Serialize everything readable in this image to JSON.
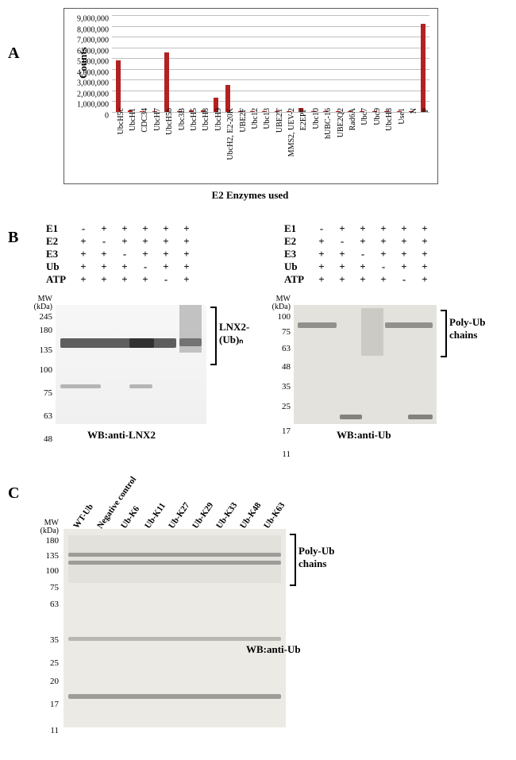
{
  "panelA": {
    "label": "A",
    "chart": {
      "type": "bar",
      "x_axis_label": "E2 Enzymes used",
      "y_axis_label": "Counts",
      "ylim": [
        0,
        9000000
      ],
      "ytick_step": 1000000,
      "bar_color": "#b22222",
      "grid_color": "#bfbfbf",
      "background_color": "#ffffff",
      "border_color": "#5a5a5a",
      "tick_fontsize": 10,
      "label_fontsize": 13,
      "categories": [
        "UbcH5c",
        "UbcH1",
        "CDC34",
        "UbcH7",
        "UbcH5b",
        "Ubc3B",
        "UbcH5",
        "UbcH8",
        "UbcH9",
        "UbcH2, E2-20K",
        "UBE2F",
        "Ubc12",
        "Ubc13",
        "UBE2T",
        "MMS2, UEV-2",
        "E2EPF",
        "Ubc10",
        "hUBC-16",
        "UBE2Q2",
        "Rad6A",
        "Ubc7",
        "Ubc9",
        "UbcH8",
        "Use1",
        "N",
        "P"
      ],
      "values": [
        4800000,
        150000,
        80000,
        80000,
        5500000,
        100000,
        150000,
        150000,
        1300000,
        2500000,
        80000,
        80000,
        80000,
        80000,
        100000,
        350000,
        80000,
        80000,
        80000,
        80000,
        100000,
        80000,
        80000,
        80000,
        80000,
        8200000
      ]
    }
  },
  "panelB": {
    "label": "B",
    "left": {
      "rows": [
        "E1",
        "E2",
        "E3",
        "Ub",
        "ATP"
      ],
      "lanes": [
        [
          "-",
          "+",
          "+",
          "+",
          "+"
        ],
        [
          "+",
          "-",
          "+",
          "+",
          "+"
        ],
        [
          "+",
          "+",
          "-",
          "+",
          "+"
        ],
        [
          "+",
          "+",
          "+",
          "-",
          "+"
        ],
        [
          "+",
          "+",
          "+",
          "+",
          "-"
        ],
        [
          "+",
          "+",
          "+",
          "+",
          "+"
        ]
      ],
      "mw_header": "MW\n(kDa)",
      "mw": [
        "245",
        "180",
        "135",
        "100",
        "75",
        "63",
        "48"
      ],
      "bracket_label": "LNX2-\n(Ub)ₙ",
      "wb": "WB:anti-LNX2"
    },
    "right": {
      "rows": [
        "E1",
        "E2",
        "E3",
        "Ub",
        "ATP"
      ],
      "lanes": [
        [
          "-",
          "+",
          "+",
          "+",
          "+"
        ],
        [
          "+",
          "-",
          "+",
          "+",
          "+"
        ],
        [
          "+",
          "+",
          "-",
          "+",
          "+"
        ],
        [
          "+",
          "+",
          "+",
          "-",
          "+"
        ],
        [
          "+",
          "+",
          "+",
          "+",
          "-"
        ],
        [
          "+",
          "+",
          "+",
          "+",
          "+"
        ]
      ],
      "mw_header": "MW\n(kDa)",
      "mw": [
        "100",
        "75",
        "63",
        "48",
        "35",
        "25",
        "17",
        "11"
      ],
      "bracket_label": "Poly-Ub\nchains",
      "wb": "WB:anti-Ub"
    }
  },
  "panelC": {
    "label": "C",
    "lane_labels": [
      "WT-Ub",
      "Negative control",
      "Ub-K6",
      "Ub-K11",
      "Ub-K27",
      "Ub-K29",
      "Ub-K33",
      "Ub-K48",
      "Ub-K63"
    ],
    "mw_header": "MW\n(kDa)",
    "mw": [
      "180",
      "135",
      "100",
      "75",
      "63",
      "35",
      "25",
      "20",
      "17",
      "11"
    ],
    "bracket_label": "Poly-Ub\nchains",
    "wb": "WB:anti-Ub"
  }
}
